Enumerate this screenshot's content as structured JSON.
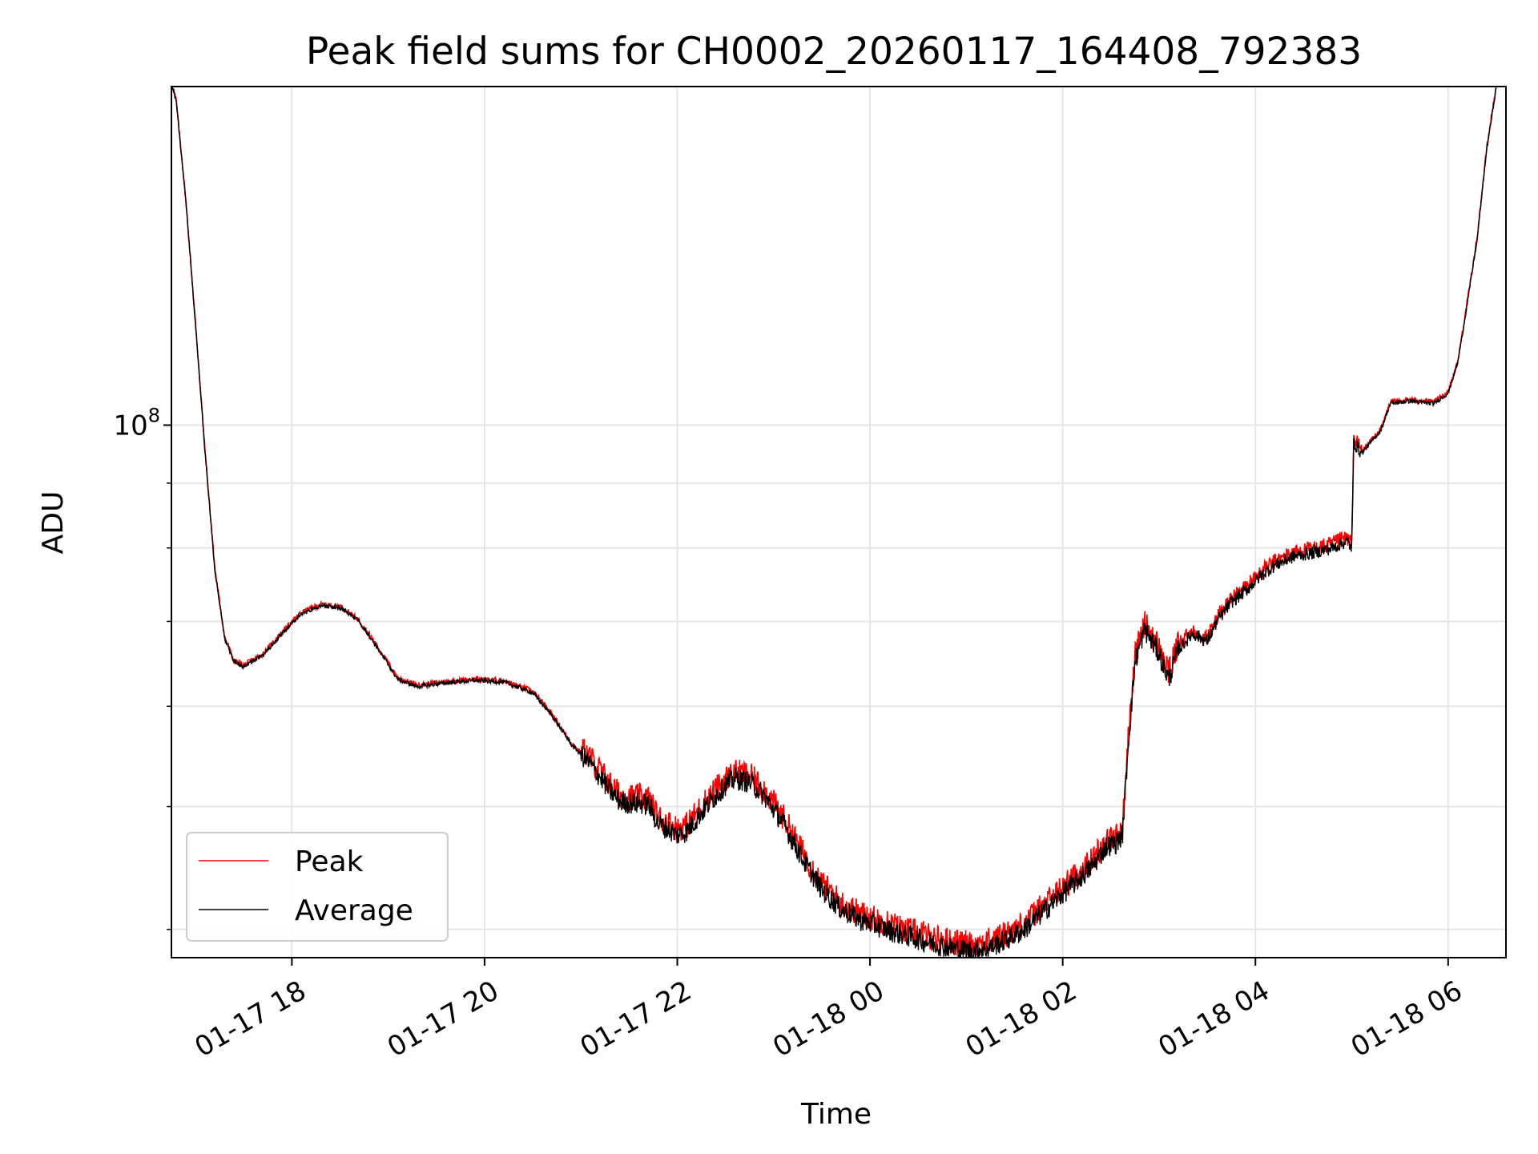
{
  "chart_data": {
    "type": "line",
    "title": "Peak field sums for CH0002_20260117_164408_792383",
    "xlabel": "Time",
    "ylabel": "ADU",
    "yscale": "log",
    "ylim": [
      38000000,
      185000000
    ],
    "xlim_hours": [
      16.75,
      30.6
    ],
    "grid": true,
    "legend_position": "lower-left",
    "x_ticks": [
      {
        "hour": 18,
        "label": "01-17 18"
      },
      {
        "hour": 20,
        "label": "01-17 20"
      },
      {
        "hour": 22,
        "label": "01-17 22"
      },
      {
        "hour": 24,
        "label": "01-18 00"
      },
      {
        "hour": 26,
        "label": "01-18 02"
      },
      {
        "hour": 28,
        "label": "01-18 04"
      },
      {
        "hour": 30,
        "label": "01-18 06"
      }
    ],
    "y_major_ticks": [
      {
        "value": 100000000,
        "base": "10",
        "exp": "8"
      }
    ],
    "y_minor_ticks": [
      40000000,
      50000000,
      60000000,
      70000000,
      80000000,
      90000000,
      200000000
    ],
    "series": [
      {
        "name": "Peak",
        "color": "#ff0000",
        "noise": 0.025,
        "offset": 0.012,
        "points": [
          [
            16.76,
            185000000
          ],
          [
            16.8,
            180000000
          ],
          [
            16.9,
            150000000
          ],
          [
            17.0,
            120000000
          ],
          [
            17.1,
            95000000
          ],
          [
            17.2,
            77000000
          ],
          [
            17.3,
            68000000
          ],
          [
            17.4,
            65000000
          ],
          [
            17.5,
            64500000
          ],
          [
            17.7,
            65800000
          ],
          [
            17.9,
            68500000
          ],
          [
            18.1,
            71000000
          ],
          [
            18.3,
            72000000
          ],
          [
            18.5,
            71800000
          ],
          [
            18.7,
            70000000
          ],
          [
            18.9,
            66500000
          ],
          [
            19.1,
            63000000
          ],
          [
            19.3,
            62200000
          ],
          [
            19.6,
            62600000
          ],
          [
            19.9,
            62900000
          ],
          [
            20.2,
            62700000
          ],
          [
            20.5,
            61500000
          ],
          [
            20.7,
            59000000
          ],
          [
            20.9,
            56000000
          ],
          [
            21.1,
            54000000
          ],
          [
            21.3,
            51500000
          ],
          [
            21.4,
            50500000
          ],
          [
            21.5,
            50300000
          ],
          [
            21.6,
            50300000
          ],
          [
            21.7,
            50200000
          ],
          [
            21.8,
            48500000
          ],
          [
            22.0,
            47500000
          ],
          [
            22.1,
            47800000
          ],
          [
            22.3,
            50000000
          ],
          [
            22.5,
            52000000
          ],
          [
            22.6,
            52600000
          ],
          [
            22.75,
            52300000
          ],
          [
            22.9,
            51000000
          ],
          [
            23.1,
            48500000
          ],
          [
            23.3,
            45500000
          ],
          [
            23.5,
            43000000
          ],
          [
            23.7,
            41500000
          ],
          [
            23.9,
            40700000
          ],
          [
            24.1,
            40200000
          ],
          [
            24.3,
            39700000
          ],
          [
            24.5,
            39300000
          ],
          [
            24.7,
            38900000
          ],
          [
            24.9,
            38600000
          ],
          [
            25.05,
            38500000
          ],
          [
            25.2,
            38600000
          ],
          [
            25.4,
            39200000
          ],
          [
            25.6,
            40000000
          ],
          [
            25.8,
            41300000
          ],
          [
            26.0,
            42700000
          ],
          [
            26.15,
            43700000
          ],
          [
            26.3,
            44800000
          ],
          [
            26.45,
            46500000
          ],
          [
            26.55,
            46800000
          ],
          [
            26.62,
            47500000
          ],
          [
            26.68,
            56000000
          ],
          [
            26.75,
            65000000
          ],
          [
            26.85,
            69000000
          ],
          [
            27.0,
            66000000
          ],
          [
            27.1,
            63000000
          ],
          [
            27.2,
            66500000
          ],
          [
            27.35,
            68500000
          ],
          [
            27.5,
            67500000
          ],
          [
            27.6,
            70000000
          ],
          [
            27.75,
            72500000
          ],
          [
            27.9,
            74000000
          ],
          [
            28.05,
            76000000
          ],
          [
            28.2,
            77500000
          ],
          [
            28.4,
            78800000
          ],
          [
            28.6,
            79300000
          ],
          [
            28.8,
            80000000
          ],
          [
            28.95,
            81000000
          ],
          [
            29.0,
            80000000
          ],
          [
            29.02,
            97000000
          ],
          [
            29.1,
            95000000
          ],
          [
            29.3,
            99000000
          ],
          [
            29.4,
            104000000
          ],
          [
            29.6,
            104500000
          ],
          [
            29.85,
            104000000
          ],
          [
            30.0,
            106000000
          ],
          [
            30.1,
            112000000
          ],
          [
            30.2,
            125000000
          ],
          [
            30.3,
            140000000
          ],
          [
            30.4,
            165000000
          ],
          [
            30.5,
            185000000
          ]
        ]
      },
      {
        "name": "Average",
        "color": "#000000",
        "noise": 0.02,
        "offset": 0.0,
        "points": [
          [
            16.76,
            185000000
          ],
          [
            16.8,
            180000000
          ],
          [
            16.9,
            150000000
          ],
          [
            17.0,
            120000000
          ],
          [
            17.1,
            95000000
          ],
          [
            17.2,
            77000000
          ],
          [
            17.3,
            68000000
          ],
          [
            17.4,
            65000000
          ],
          [
            17.5,
            64500000
          ],
          [
            17.7,
            65800000
          ],
          [
            17.9,
            68500000
          ],
          [
            18.1,
            71000000
          ],
          [
            18.3,
            72000000
          ],
          [
            18.5,
            71800000
          ],
          [
            18.7,
            70000000
          ],
          [
            18.9,
            66500000
          ],
          [
            19.1,
            63000000
          ],
          [
            19.3,
            62200000
          ],
          [
            19.6,
            62600000
          ],
          [
            19.9,
            62900000
          ],
          [
            20.2,
            62700000
          ],
          [
            20.5,
            61500000
          ],
          [
            20.7,
            59000000
          ],
          [
            20.9,
            56000000
          ],
          [
            21.1,
            54000000
          ],
          [
            21.3,
            51500000
          ],
          [
            21.4,
            50500000
          ],
          [
            21.5,
            50300000
          ],
          [
            21.6,
            50300000
          ],
          [
            21.7,
            50200000
          ],
          [
            21.8,
            48500000
          ],
          [
            22.0,
            47500000
          ],
          [
            22.1,
            47800000
          ],
          [
            22.3,
            50000000
          ],
          [
            22.5,
            52000000
          ],
          [
            22.6,
            52600000
          ],
          [
            22.75,
            52300000
          ],
          [
            22.9,
            51000000
          ],
          [
            23.1,
            48500000
          ],
          [
            23.3,
            45500000
          ],
          [
            23.5,
            43000000
          ],
          [
            23.7,
            41500000
          ],
          [
            23.9,
            40700000
          ],
          [
            24.1,
            40200000
          ],
          [
            24.3,
            39700000
          ],
          [
            24.5,
            39300000
          ],
          [
            24.7,
            38900000
          ],
          [
            24.9,
            38600000
          ],
          [
            25.05,
            38500000
          ],
          [
            25.2,
            38600000
          ],
          [
            25.4,
            39200000
          ],
          [
            25.6,
            40000000
          ],
          [
            25.8,
            41300000
          ],
          [
            26.0,
            42700000
          ],
          [
            26.15,
            43700000
          ],
          [
            26.3,
            44800000
          ],
          [
            26.45,
            46500000
          ],
          [
            26.55,
            46800000
          ],
          [
            26.62,
            47500000
          ],
          [
            26.68,
            56000000
          ],
          [
            26.75,
            65000000
          ],
          [
            26.85,
            69000000
          ],
          [
            27.0,
            66000000
          ],
          [
            27.1,
            63000000
          ],
          [
            27.2,
            66500000
          ],
          [
            27.35,
            68500000
          ],
          [
            27.5,
            67500000
          ],
          [
            27.6,
            70000000
          ],
          [
            27.75,
            72500000
          ],
          [
            27.9,
            74000000
          ],
          [
            28.05,
            76000000
          ],
          [
            28.2,
            77500000
          ],
          [
            28.4,
            78800000
          ],
          [
            28.6,
            79300000
          ],
          [
            28.8,
            80000000
          ],
          [
            28.95,
            81000000
          ],
          [
            29.0,
            80000000
          ],
          [
            29.02,
            97000000
          ],
          [
            29.1,
            95000000
          ],
          [
            29.3,
            99000000
          ],
          [
            29.4,
            104000000
          ],
          [
            29.6,
            104500000
          ],
          [
            29.85,
            104000000
          ],
          [
            30.0,
            106000000
          ],
          [
            30.1,
            112000000
          ],
          [
            30.2,
            125000000
          ],
          [
            30.3,
            140000000
          ],
          [
            30.4,
            165000000
          ],
          [
            30.5,
            185000000
          ]
        ]
      }
    ]
  }
}
